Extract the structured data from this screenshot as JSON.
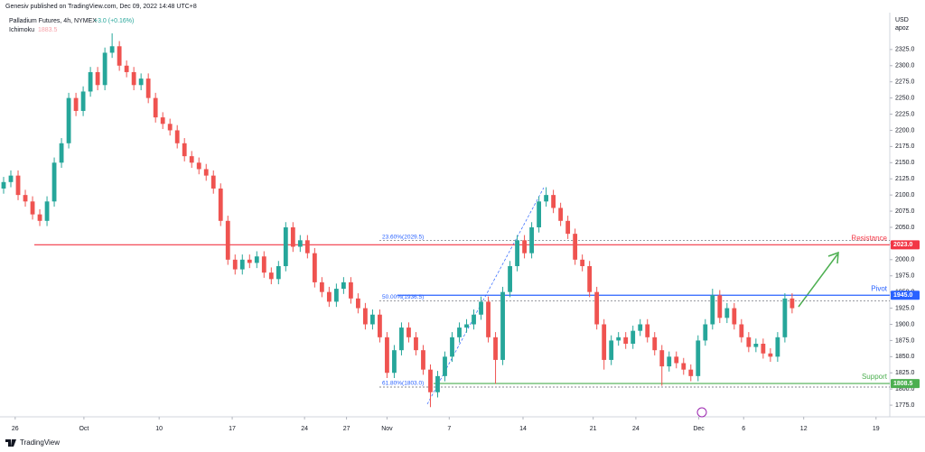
{
  "chart_data": {
    "type": "candlestick",
    "publisher": "Genesiv published on TradingView.com, Dec 09, 2022 14:48 UTC+8",
    "title": "Palladium Futures, 4h, NYMEX",
    "change": "+3.0 (+0.16%)",
    "indicator": "Ichimoku",
    "indicator_value": "1883.5",
    "currency": "USD",
    "unit": "apoz",
    "brand": "TradingView",
    "up_color": "#26a69a",
    "down_color": "#ef5350",
    "candles": [
      [
        2110,
        2128,
        2102,
        2120
      ],
      [
        2120,
        2138,
        2112,
        2130
      ],
      [
        2130,
        2138,
        2092,
        2100
      ],
      [
        2100,
        2108,
        2082,
        2090
      ],
      [
        2090,
        2098,
        2062,
        2070
      ],
      [
        2070,
        2078,
        2052,
        2060
      ],
      [
        2060,
        2098,
        2052,
        2090
      ],
      [
        2090,
        2158,
        2082,
        2150
      ],
      [
        2150,
        2188,
        2142,
        2180
      ],
      [
        2180,
        2258,
        2172,
        2250
      ],
      [
        2250,
        2258,
        2222,
        2230
      ],
      [
        2230,
        2268,
        2222,
        2260
      ],
      [
        2260,
        2298,
        2252,
        2290
      ],
      [
        2290,
        2298,
        2262,
        2270
      ],
      [
        2270,
        2328,
        2262,
        2320
      ],
      [
        2320,
        2350,
        2312,
        2330
      ],
      [
        2330,
        2338,
        2292,
        2300
      ],
      [
        2300,
        2308,
        2282,
        2290
      ],
      [
        2290,
        2298,
        2262,
        2270
      ],
      [
        2270,
        2288,
        2262,
        2280
      ],
      [
        2280,
        2288,
        2242,
        2250
      ],
      [
        2250,
        2258,
        2212,
        2220
      ],
      [
        2220,
        2228,
        2202,
        2210
      ],
      [
        2210,
        2218,
        2192,
        2200
      ],
      [
        2200,
        2208,
        2172,
        2180
      ],
      [
        2180,
        2188,
        2152,
        2160
      ],
      [
        2160,
        2168,
        2142,
        2150
      ],
      [
        2150,
        2158,
        2132,
        2140
      ],
      [
        2140,
        2148,
        2122,
        2130
      ],
      [
        2130,
        2138,
        2102,
        2110
      ],
      [
        2110,
        2118,
        2052,
        2060
      ],
      [
        2060,
        2068,
        1992,
        2000
      ],
      [
        2000,
        2008,
        1977,
        1985
      ],
      [
        1985,
        2008,
        1977,
        2000
      ],
      [
        2000,
        2008,
        1987,
        1995
      ],
      [
        1995,
        2013,
        1987,
        2005
      ],
      [
        2005,
        2013,
        1972,
        1980
      ],
      [
        1980,
        1988,
        1962,
        1970
      ],
      [
        1970,
        1998,
        1962,
        1990
      ],
      [
        1990,
        2058,
        1982,
        2050
      ],
      [
        2050,
        2058,
        2012,
        2020
      ],
      [
        2020,
        2038,
        2012,
        2030
      ],
      [
        2030,
        2038,
        2002,
        2010
      ],
      [
        2010,
        2018,
        1957,
        1965
      ],
      [
        1965,
        1973,
        1942,
        1950
      ],
      [
        1950,
        1958,
        1927,
        1935
      ],
      [
        1935,
        1963,
        1927,
        1955
      ],
      [
        1955,
        1973,
        1947,
        1965
      ],
      [
        1965,
        1973,
        1932,
        1940
      ],
      [
        1940,
        1948,
        1917,
        1925
      ],
      [
        1925,
        1933,
        1892,
        1900
      ],
      [
        1900,
        1923,
        1892,
        1915
      ],
      [
        1915,
        1923,
        1872,
        1880
      ],
      [
        1880,
        1888,
        1817,
        1825
      ],
      [
        1825,
        1868,
        1817,
        1860
      ],
      [
        1860,
        1903,
        1852,
        1895
      ],
      [
        1895,
        1903,
        1872,
        1880
      ],
      [
        1880,
        1888,
        1852,
        1860
      ],
      [
        1860,
        1868,
        1822,
        1830
      ],
      [
        1830,
        1838,
        1772,
        1795
      ],
      [
        1795,
        1828,
        1787,
        1820
      ],
      [
        1820,
        1858,
        1812,
        1850
      ],
      [
        1850,
        1888,
        1842,
        1880
      ],
      [
        1880,
        1903,
        1872,
        1895
      ],
      [
        1895,
        1908,
        1887,
        1900
      ],
      [
        1900,
        1923,
        1892,
        1915
      ],
      [
        1915,
        1943,
        1907,
        1935
      ],
      [
        1935,
        1943,
        1872,
        1880
      ],
      [
        1880,
        1888,
        1808,
        1845
      ],
      [
        1845,
        1958,
        1837,
        1950
      ],
      [
        1950,
        1998,
        1942,
        1990
      ],
      [
        1990,
        2038,
        1982,
        2030
      ],
      [
        2030,
        2038,
        2002,
        2010
      ],
      [
        2010,
        2058,
        2002,
        2050
      ],
      [
        2050,
        2098,
        2042,
        2090
      ],
      [
        2090,
        2112,
        2082,
        2100
      ],
      [
        2100,
        2108,
        2072,
        2080
      ],
      [
        2080,
        2088,
        2052,
        2060
      ],
      [
        2060,
        2068,
        2032,
        2040
      ],
      [
        2040,
        2048,
        1992,
        2000
      ],
      [
        2000,
        2008,
        1982,
        1990
      ],
      [
        1990,
        1998,
        1942,
        1950
      ],
      [
        1950,
        1958,
        1892,
        1900
      ],
      [
        1900,
        1908,
        1830,
        1845
      ],
      [
        1845,
        1883,
        1837,
        1875
      ],
      [
        1875,
        1888,
        1867,
        1880
      ],
      [
        1880,
        1888,
        1862,
        1870
      ],
      [
        1870,
        1898,
        1862,
        1890
      ],
      [
        1890,
        1908,
        1882,
        1900
      ],
      [
        1900,
        1908,
        1872,
        1880
      ],
      [
        1880,
        1888,
        1852,
        1860
      ],
      [
        1860,
        1868,
        1805,
        1835
      ],
      [
        1835,
        1858,
        1827,
        1850
      ],
      [
        1850,
        1858,
        1832,
        1840
      ],
      [
        1840,
        1848,
        1822,
        1830
      ],
      [
        1830,
        1838,
        1812,
        1820
      ],
      [
        1820,
        1883,
        1812,
        1875
      ],
      [
        1875,
        1908,
        1867,
        1900
      ],
      [
        1900,
        1955,
        1892,
        1945
      ],
      [
        1945,
        1953,
        1902,
        1910
      ],
      [
        1910,
        1933,
        1902,
        1925
      ],
      [
        1925,
        1933,
        1892,
        1900
      ],
      [
        1900,
        1908,
        1872,
        1880
      ],
      [
        1880,
        1888,
        1857,
        1865
      ],
      [
        1865,
        1878,
        1857,
        1870
      ],
      [
        1870,
        1878,
        1847,
        1855
      ],
      [
        1855,
        1863,
        1842,
        1850
      ],
      [
        1850,
        1888,
        1842,
        1880
      ],
      [
        1880,
        1948,
        1872,
        1940
      ],
      [
        1940,
        1948,
        1917,
        1925
      ]
    ],
    "xlim": [
      0,
      123
    ],
    "xticks": [
      {
        "value": 2.1,
        "label": "26"
      },
      {
        "value": 11.6,
        "label": "Oct"
      },
      {
        "value": 22,
        "label": "10"
      },
      {
        "value": 32.1,
        "label": "17"
      },
      {
        "value": 42.1,
        "label": "24"
      },
      {
        "value": 47.9,
        "label": "27"
      },
      {
        "value": 53.5,
        "label": "Nov"
      },
      {
        "value": 62.1,
        "label": "7"
      },
      {
        "value": 72.3,
        "label": "14"
      },
      {
        "value": 82,
        "label": "21"
      },
      {
        "value": 87.9,
        "label": "24"
      },
      {
        "value": 96.6,
        "label": "Dec"
      },
      {
        "value": 102.8,
        "label": "6"
      },
      {
        "value": 111.1,
        "label": "12"
      },
      {
        "value": 121.1,
        "label": "19"
      }
    ],
    "ylim": [
      1757,
      2382
    ],
    "yticks": [
      {
        "value": 1775,
        "label": "1775.0"
      },
      {
        "value": 1800,
        "label": "1800.0"
      },
      {
        "value": 1825,
        "label": "1825.0"
      },
      {
        "value": 1850,
        "label": "1850.0"
      },
      {
        "value": 1875,
        "label": "1875.0"
      },
      {
        "value": 1900,
        "label": "1900.0"
      },
      {
        "value": 1925,
        "label": "1925.0"
      },
      {
        "value": 1950,
        "label": "1950.0"
      },
      {
        "value": 1975,
        "label": "1975.0"
      },
      {
        "value": 2000,
        "label": "2000.0"
      },
      {
        "value": 2025,
        "label": "2025.0"
      },
      {
        "value": 2050,
        "label": "2050.0"
      },
      {
        "value": 2075,
        "label": "2075.0"
      },
      {
        "value": 2100,
        "label": "2100.0"
      },
      {
        "value": 2125,
        "label": "2125.0"
      },
      {
        "value": 2150,
        "label": "2150.0"
      },
      {
        "value": 2175,
        "label": "2175.0"
      },
      {
        "value": 2200,
        "label": "2200.0"
      },
      {
        "value": 2225,
        "label": "2225.0"
      },
      {
        "value": 2250,
        "label": "2250.0"
      },
      {
        "value": 2275,
        "label": "2275.0"
      },
      {
        "value": 2300,
        "label": "2300.0"
      },
      {
        "value": 2325,
        "label": "2325.0"
      }
    ],
    "levels": [
      {
        "name": "Resistance",
        "value": 2023,
        "label": "2023.0",
        "color": "#f23645"
      },
      {
        "name": "Pivot",
        "value": 1945,
        "label": "1945.0",
        "color": "#2962ff"
      },
      {
        "name": "Support",
        "value": 1808.5,
        "label": "1808.5",
        "color": "#4caf50"
      }
    ],
    "fib_levels": [
      {
        "value": 2029.5,
        "label": "23.60%(2029.5)"
      },
      {
        "value": 1936.5,
        "label": "50.00%(1936.5)"
      },
      {
        "value": 1803,
        "label": "61.80%(1803.0)"
      }
    ]
  }
}
